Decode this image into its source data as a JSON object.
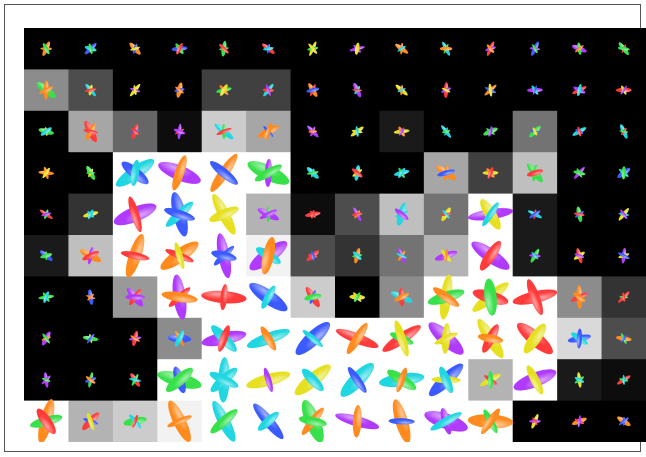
{
  "figure": {
    "rows": 10,
    "cols": 14,
    "background_levels": [
      [
        0,
        0,
        0,
        0,
        0,
        0,
        0,
        0,
        0,
        0,
        0,
        0,
        0,
        0
      ],
      [
        0.55,
        0.3,
        0,
        0,
        0.25,
        0.25,
        0,
        0,
        0,
        0,
        0,
        0,
        0,
        0
      ],
      [
        0,
        0.65,
        0.4,
        0.05,
        0.8,
        0.65,
        0,
        0,
        0.1,
        0,
        0,
        0.45,
        0,
        0
      ],
      [
        0,
        0,
        1,
        1,
        1,
        1,
        0,
        0,
        0,
        0.65,
        0.25,
        0.75,
        0,
        0
      ],
      [
        0,
        0.2,
        1,
        1,
        1,
        0.7,
        0.05,
        0.3,
        0.75,
        0.45,
        1,
        0.1,
        0,
        0
      ],
      [
        0.1,
        0.75,
        1,
        1,
        1,
        0.95,
        0.3,
        0.2,
        0.45,
        0.7,
        1,
        0.1,
        0,
        0
      ],
      [
        0,
        0,
        0.6,
        1,
        1,
        1,
        0.8,
        0,
        0.55,
        1,
        1,
        1,
        0.55,
        0.2
      ],
      [
        0,
        0,
        0,
        0.55,
        1,
        1,
        1,
        1,
        1,
        1,
        1,
        1,
        0.85,
        0.3
      ],
      [
        0,
        0,
        0,
        1,
        1,
        1,
        1,
        1,
        1,
        1,
        0.7,
        1,
        0.1,
        0.05
      ],
      [
        1,
        0.7,
        0.8,
        0.95,
        1,
        1,
        1,
        1,
        1,
        1,
        1,
        0,
        0,
        0
      ]
    ],
    "glyph_palette": [
      "#ff3b3b",
      "#3b5bff",
      "#38e04a",
      "#e6e020",
      "#b03bff",
      "#20d6e0",
      "#ff8a1e"
    ]
  }
}
